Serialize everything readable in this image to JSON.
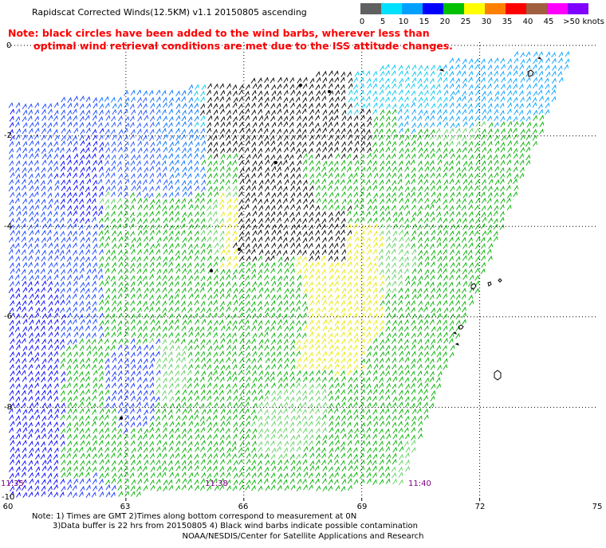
{
  "header": {
    "title": "Rapidscat Corrected Winds(12.5KM) v1.1 20150805 ascending",
    "note_line1": "Note: black circles have been added to the wind barbs, wherever less than",
    "note_line2": "optimal wind retrieval conditions are met due to the ISS attitude changes."
  },
  "colorbar": {
    "labels": [
      "0",
      "5",
      "10",
      "15",
      "20",
      "25",
      "30",
      "35",
      "40",
      "45",
      ">50 knots"
    ],
    "colors": [
      "#606060",
      "#00e0ff",
      "#00a0ff",
      "#0000ff",
      "#00c000",
      "#ffff00",
      "#ff8000",
      "#ff0000",
      "#a06040",
      "#ff00ff",
      "#8000ff"
    ]
  },
  "map": {
    "y_ticks": [
      "0",
      "-2",
      "-4",
      "-6",
      "-8",
      "-10"
    ],
    "x_ticks": [
      "60",
      "63",
      "66",
      "69",
      "72",
      "75"
    ],
    "time_labels": [
      "11:35",
      "11:38",
      "11:40"
    ]
  },
  "footer": {
    "line1": "Note: 1) Times are GMT 2)Times along bottom correspond to measurement at 0N",
    "line2": "3)Data buffer is 22 hrs from 20150805 4) Black wind barbs indicate possible contamination",
    "line3": "NOAA/NESDIS/Center for Satellite Applications and Research"
  }
}
